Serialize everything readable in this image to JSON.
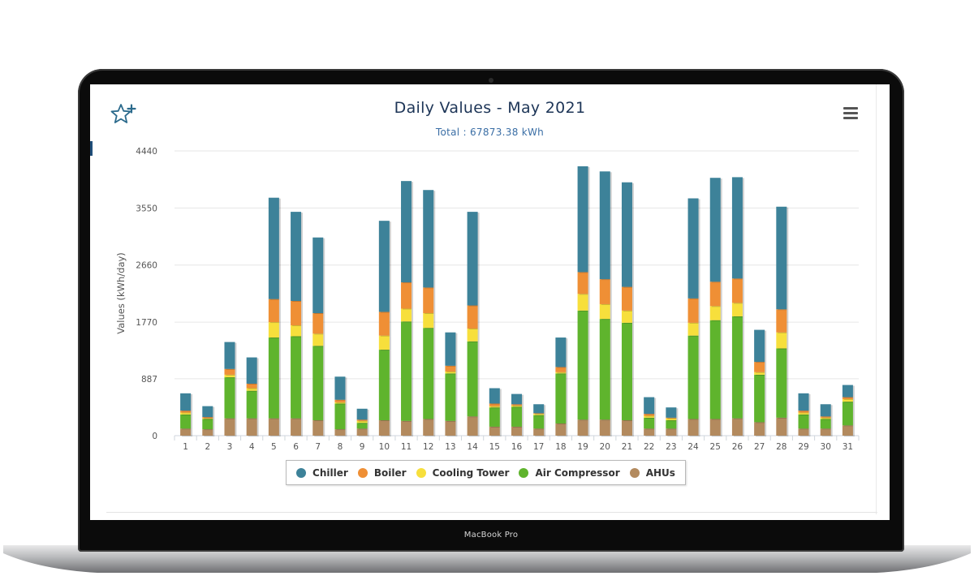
{
  "device": {
    "label": "MacBook Pro"
  },
  "chart_data": {
    "type": "bar",
    "stacked": true,
    "title": "Daily Values - May 2021",
    "subtitle": "Total : 67873.38 kWh",
    "ylabel": "Values (kWh/day)",
    "xlabel": "",
    "ylim": [
      0,
      4440
    ],
    "yticks": [
      0,
      887,
      1770,
      2660,
      3550,
      4440
    ],
    "grid": true,
    "legend_position": "bottom",
    "categories": [
      "1",
      "2",
      "3",
      "4",
      "5",
      "6",
      "7",
      "8",
      "9",
      "10",
      "11",
      "12",
      "13",
      "14",
      "15",
      "16",
      "17",
      "18",
      "19",
      "20",
      "21",
      "22",
      "23",
      "24",
      "25",
      "26",
      "27",
      "28",
      "29",
      "30",
      "31"
    ],
    "series": [
      {
        "name": "AHUs",
        "color": "#b38a5e",
        "values": [
          110,
          100,
          270,
          270,
          270,
          270,
          240,
          100,
          110,
          240,
          230,
          260,
          230,
          300,
          140,
          140,
          110,
          190,
          250,
          250,
          240,
          110,
          110,
          260,
          260,
          270,
          210,
          280,
          110,
          110,
          160
        ]
      },
      {
        "name": "Air Compressor",
        "color": "#5fb42d",
        "values": [
          220,
          160,
          640,
          430,
          1260,
          1280,
          1160,
          400,
          90,
          1100,
          1550,
          1420,
          740,
          1170,
          300,
          310,
          210,
          780,
          1700,
          1570,
          1520,
          170,
          130,
          1300,
          1540,
          1590,
          740,
          1080,
          220,
          150,
          370
        ]
      },
      {
        "name": "Cooling Tower",
        "color": "#f7df3c",
        "values": [
          30,
          10,
          40,
          40,
          240,
          170,
          190,
          20,
          30,
          220,
          200,
          230,
          30,
          200,
          20,
          20,
          20,
          20,
          260,
          230,
          190,
          30,
          30,
          200,
          220,
          210,
          40,
          250,
          30,
          20,
          40
        ]
      },
      {
        "name": "Boiler",
        "color": "#ef8f35",
        "values": [
          30,
          20,
          90,
          70,
          360,
          380,
          320,
          40,
          20,
          370,
          410,
          400,
          90,
          360,
          40,
          20,
          10,
          80,
          340,
          390,
          370,
          30,
          10,
          380,
          380,
          380,
          160,
          360,
          30,
          20,
          30
        ]
      },
      {
        "name": "Chiller",
        "color": "#3d8299",
        "values": [
          270,
          170,
          420,
          410,
          1580,
          1390,
          1180,
          360,
          170,
          1420,
          1580,
          1520,
          520,
          1460,
          240,
          160,
          140,
          460,
          1650,
          1680,
          1630,
          260,
          160,
          1560,
          1620,
          1580,
          500,
          1600,
          270,
          190,
          190
        ]
      }
    ]
  },
  "legend": {
    "items": [
      {
        "label": "Chiller",
        "color": "#3d8299"
      },
      {
        "label": "Boiler",
        "color": "#ef8f35"
      },
      {
        "label": "Cooling Tower",
        "color": "#f7df3c"
      },
      {
        "label": "Air Compressor",
        "color": "#5fb42d"
      },
      {
        "label": "AHUs",
        "color": "#b38a5e"
      }
    ]
  },
  "icons": {
    "favorite": "star-plus-icon",
    "menu": "hamburger-menu-icon"
  }
}
